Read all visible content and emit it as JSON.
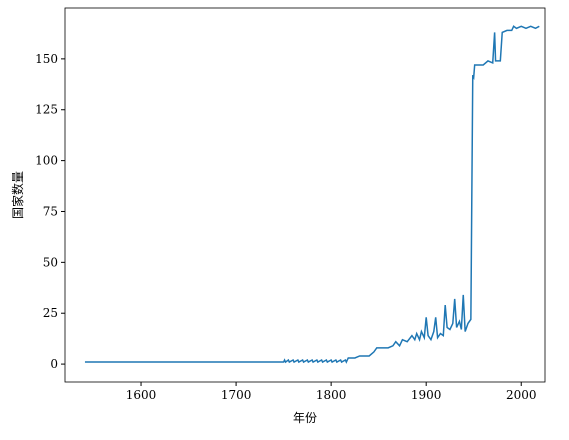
{
  "chart_data": {
    "type": "line",
    "xlabel": "年份",
    "ylabel": "国家数量",
    "x": [
      1541,
      1750,
      1751,
      1752,
      1755,
      1756,
      1760,
      1761,
      1765,
      1766,
      1770,
      1771,
      1775,
      1776,
      1780,
      1781,
      1785,
      1786,
      1790,
      1791,
      1795,
      1796,
      1800,
      1801,
      1805,
      1806,
      1810,
      1811,
      1815,
      1816,
      1818,
      1825,
      1830,
      1840,
      1845,
      1848,
      1860,
      1865,
      1868,
      1872,
      1875,
      1880,
      1885,
      1888,
      1890,
      1893,
      1895,
      1898,
      1900,
      1902,
      1905,
      1908,
      1910,
      1912,
      1915,
      1918,
      1920,
      1922,
      1925,
      1928,
      1930,
      1932,
      1935,
      1937,
      1939,
      1941,
      1944,
      1947,
      1949,
      1950,
      1951,
      1960,
      1965,
      1970,
      1972,
      1973,
      1978,
      1980,
      1985,
      1990,
      1992,
      1995,
      2000,
      2005,
      2010,
      2015,
      2019
    ],
    "series": [
      {
        "color": "#1f77b4",
        "values": [
          1,
          1,
          2,
          1,
          2,
          1,
          2,
          1,
          2,
          1,
          2,
          1,
          2,
          1,
          2,
          1,
          2,
          1,
          2,
          1,
          2,
          1,
          2,
          1,
          2,
          1,
          2,
          1,
          2,
          1,
          3,
          3,
          4,
          4,
          6,
          8,
          8,
          9,
          11,
          9,
          12,
          11,
          14,
          12,
          15,
          12,
          16,
          13,
          23,
          14,
          12,
          16,
          23,
          13,
          15,
          14,
          29,
          18,
          17,
          20,
          32,
          18,
          21,
          17,
          34,
          16,
          20,
          22,
          142,
          141,
          147,
          147,
          149,
          148,
          163,
          149,
          149,
          163,
          164,
          164,
          166,
          165,
          166,
          165,
          166,
          165,
          166
        ]
      }
    ],
    "xlim": [
      1520,
      2025
    ],
    "ylim": [
      -8.8,
      175
    ],
    "xticks": [
      1600,
      1700,
      1800,
      1900,
      2000
    ],
    "yticks": [
      0,
      25,
      50,
      75,
      100,
      125,
      150
    ]
  }
}
